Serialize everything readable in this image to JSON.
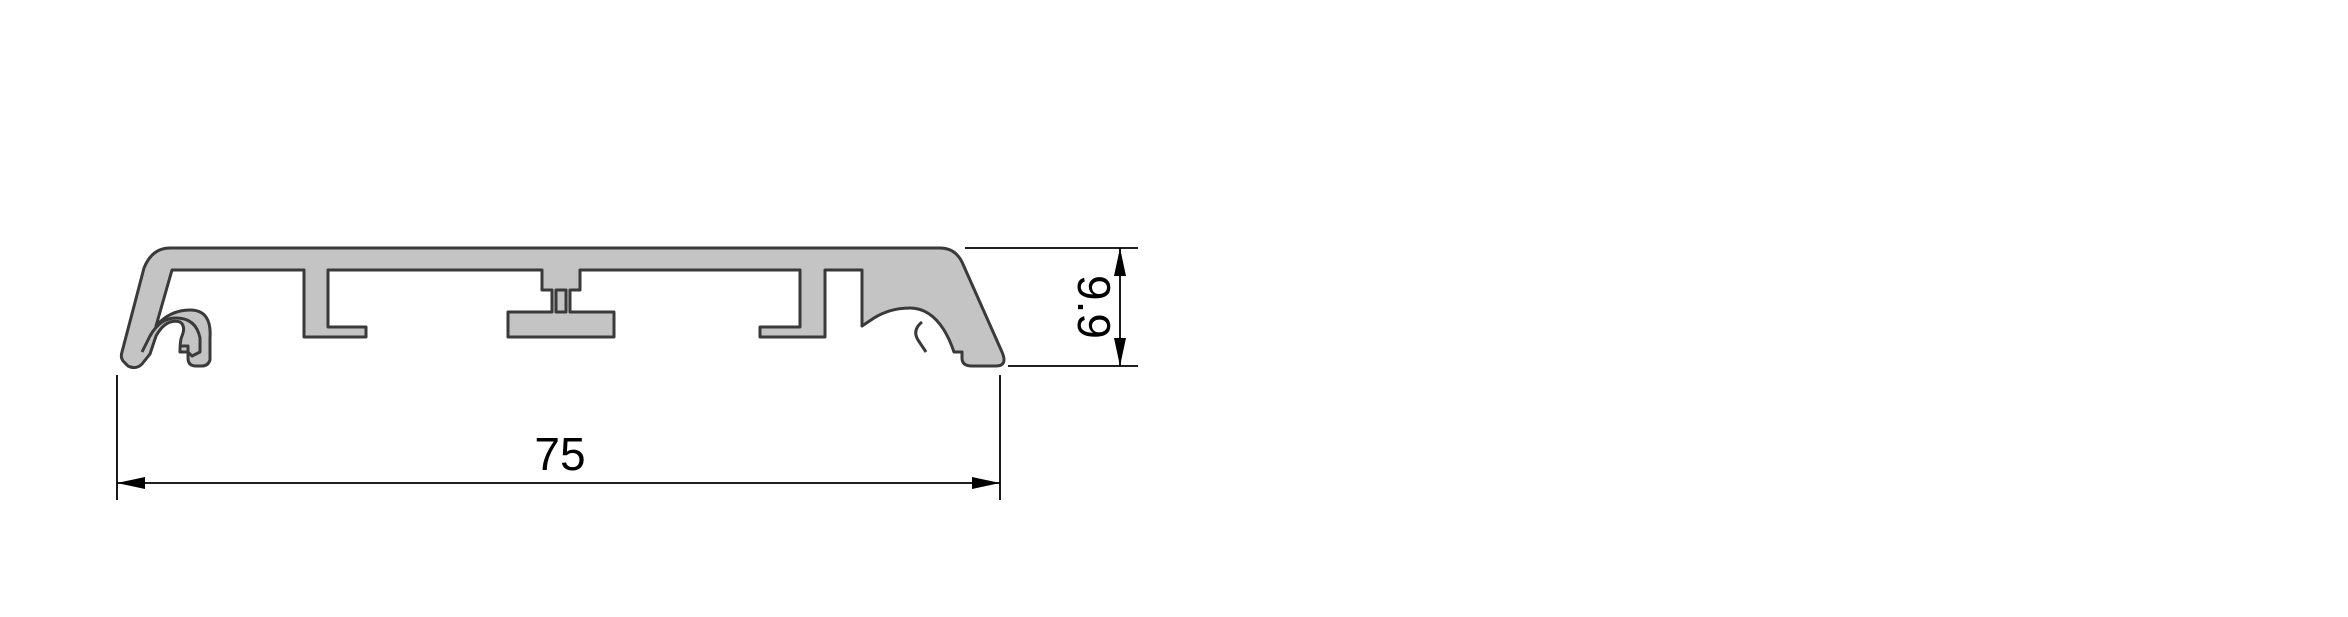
{
  "drawing": {
    "width_dimension": "75",
    "height_dimension": "9.9"
  },
  "colors": {
    "profile_fill": "#c4c4c4",
    "profile_stroke": "#3a3a3a",
    "dimension": "#000000"
  }
}
